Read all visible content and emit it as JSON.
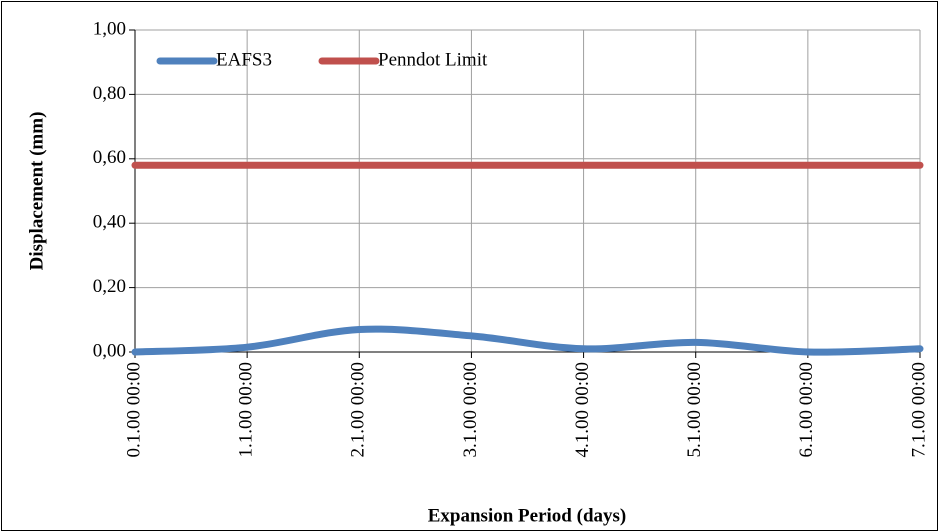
{
  "chart_data": {
    "type": "line",
    "x_label": "Expansion Period (days)",
    "y_label": "Displacement (mm)",
    "categories": [
      "0.1.00 00:00",
      "1.1.00 00:00",
      "2.1.00 00:00",
      "3.1.00 00:00",
      "4.1.00 00:00",
      "5.1.00 00:00",
      "6.1.00 00:00",
      "7.1.00 00:00"
    ],
    "series": [
      {
        "name": "EAFS3",
        "color": "#4f81bd",
        "values": [
          0.0,
          0.015,
          0.07,
          0.05,
          0.01,
          0.03,
          0.0,
          0.01
        ]
      },
      {
        "name": "Penndot Limit",
        "color": "#c0504d",
        "values": [
          0.58,
          0.58,
          0.58,
          0.58,
          0.58,
          0.58,
          0.58,
          0.58
        ]
      }
    ],
    "ylim": [
      0,
      1
    ],
    "yticks": [
      {
        "value": 0,
        "label": "0,00"
      },
      {
        "value": 0.2,
        "label": "0,20"
      },
      {
        "value": 0.4,
        "label": "0,40"
      },
      {
        "value": 0.6,
        "label": "0,60"
      },
      {
        "value": 0.8,
        "label": "0,80"
      },
      {
        "value": 1,
        "label": "1,00"
      }
    ],
    "grid": true,
    "smooth": true,
    "legend": "top-left"
  }
}
